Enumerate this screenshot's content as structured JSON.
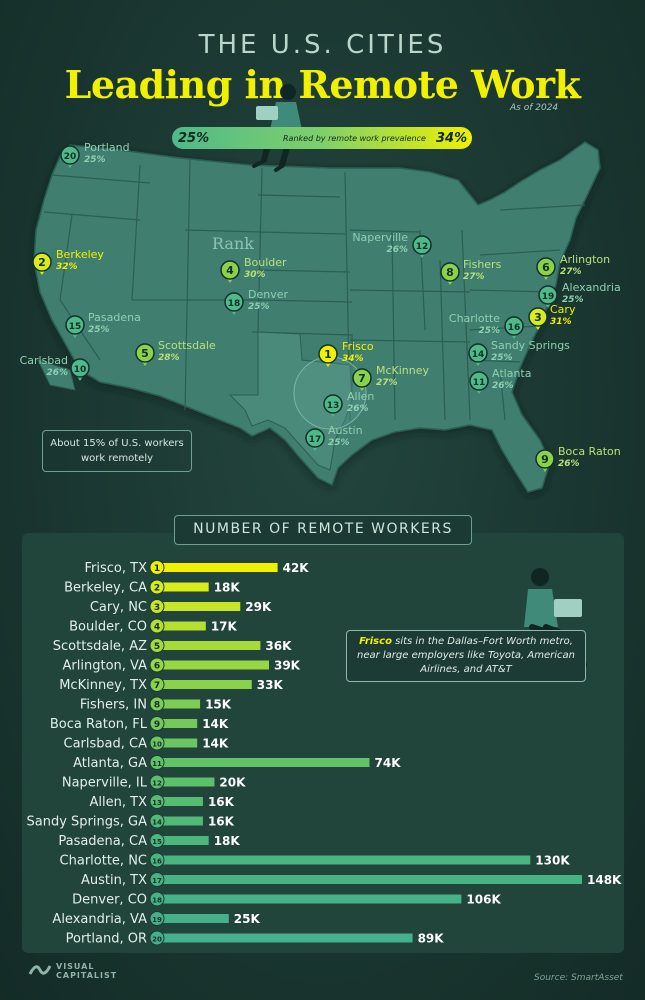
{
  "header": {
    "sup_title": "THE U.S. CITIES",
    "title": "Leading in Remote Work",
    "as_of": "As of 2024"
  },
  "legend": {
    "min_label": "25%",
    "caption": "Ranked by remote work prevalence",
    "max_label": "34%"
  },
  "map": {
    "rank_label": "Rank",
    "note": "About 15% of U.S. workers work remotely",
    "colors": {
      "land": "#3f7e70",
      "border": "#2b5f53",
      "texas_highlight": "#4a8a7b",
      "marker_low": "#4fb98a",
      "marker_high": "#f0f000"
    }
  },
  "cities": [
    {
      "rank": "1",
      "name": "Frisco",
      "pct": "34%"
    },
    {
      "rank": "2",
      "name": "Berkeley",
      "pct": "32%"
    },
    {
      "rank": "3",
      "name": "Cary",
      "pct": "31%"
    },
    {
      "rank": "4",
      "name": "Boulder",
      "pct": "30%"
    },
    {
      "rank": "5",
      "name": "Scottsdale",
      "pct": "28%"
    },
    {
      "rank": "6",
      "name": "Arlington",
      "pct": "27%"
    },
    {
      "rank": "7",
      "name": "McKinney",
      "pct": "27%"
    },
    {
      "rank": "8",
      "name": "Fishers",
      "pct": "27%"
    },
    {
      "rank": "9",
      "name": "Boca Raton",
      "pct": "26%"
    },
    {
      "rank": "10",
      "name": "Carlsbad",
      "pct": "26%"
    },
    {
      "rank": "11",
      "name": "Atlanta",
      "pct": "26%"
    },
    {
      "rank": "12",
      "name": "Naperville",
      "pct": "26%"
    },
    {
      "rank": "13",
      "name": "Allen",
      "pct": "26%"
    },
    {
      "rank": "14",
      "name": "Sandy Springs",
      "pct": "25%"
    },
    {
      "rank": "15",
      "name": "Pasadena",
      "pct": "25%"
    },
    {
      "rank": "16",
      "name": "Charlotte",
      "pct": "25%"
    },
    {
      "rank": "17",
      "name": "Austin",
      "pct": "25%"
    },
    {
      "rank": "18",
      "name": "Denver",
      "pct": "25%"
    },
    {
      "rank": "19",
      "name": "Alexandria",
      "pct": "25%"
    },
    {
      "rank": "20",
      "name": "Portland",
      "pct": "25%"
    }
  ],
  "chart_data": {
    "type": "bar",
    "title": "NUMBER OF REMOTE WORKERS",
    "categories": [
      "Frisco, TX",
      "Berkeley, CA",
      "Cary, NC",
      "Boulder, CO",
      "Scottsdale, AZ",
      "Arlington, VA",
      "McKinney, TX",
      "Fishers, IN",
      "Boca Raton, FL",
      "Carlsbad, CA",
      "Atlanta, GA",
      "Naperville, IL",
      "Allen, TX",
      "Sandy Springs, GA",
      "Pasadena, CA",
      "Charlotte, NC",
      "Austin, TX",
      "Denver, CO",
      "Alexandria, VA",
      "Portland, OR"
    ],
    "ranks": [
      "1",
      "2",
      "3",
      "4",
      "5",
      "6",
      "7",
      "8",
      "9",
      "10",
      "11",
      "12",
      "13",
      "14",
      "15",
      "16",
      "17",
      "18",
      "19",
      "20"
    ],
    "values": [
      42000,
      18000,
      29000,
      17000,
      36000,
      39000,
      33000,
      15000,
      14000,
      14000,
      74000,
      20000,
      16000,
      16000,
      18000,
      130000,
      148000,
      106000,
      25000,
      89000
    ],
    "value_labels": [
      "42K",
      "18K",
      "29K",
      "17K",
      "36K",
      "39K",
      "33K",
      "15K",
      "14K",
      "14K",
      "74K",
      "20K",
      "16K",
      "16K",
      "18K",
      "130K",
      "148K",
      "106K",
      "25K",
      "89K"
    ],
    "orientation": "horizontal",
    "colors": [
      "#f0f000",
      "#d9ec1a",
      "#c8e626",
      "#b5e030",
      "#a6db3a",
      "#98d642",
      "#8ad24a",
      "#7ecd52",
      "#74c95a",
      "#6ac660",
      "#62c266",
      "#5bbf6c",
      "#55bc72",
      "#50b977",
      "#4cb77c",
      "#49b581",
      "#47b385",
      "#46b288",
      "#45b18b",
      "#44b08d"
    ],
    "xlim": [
      0,
      148000
    ]
  },
  "callout": {
    "highlight": "Frisco",
    "text": " sits in the Dallas–Fort Worth metro, near large employers like Toyota, American Airlines, and AT&T"
  },
  "footer": {
    "logo_line1": "VISUAL",
    "logo_line2": "CAPITALIST",
    "source": "Source: SmartAsset"
  }
}
